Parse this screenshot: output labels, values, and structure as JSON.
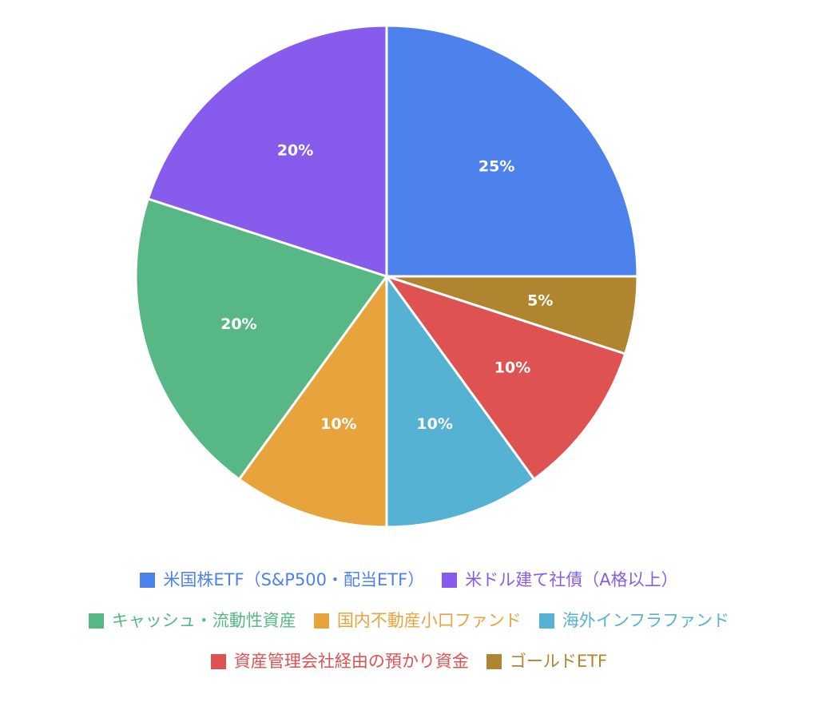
{
  "chart_data": {
    "type": "pie",
    "categories": [
      "米国株ETF（S&P500・配当ETF）",
      "ゴールドETF",
      "資産管理会社経由の預かり資金",
      "海外インフラファンド",
      "国内不動産小口ファンド",
      "キャッシュ・流動性資産",
      "米ドル建て社債（A格以上）"
    ],
    "values": [
      25,
      5,
      10,
      10,
      10,
      20,
      20
    ],
    "value_labels": [
      "25%",
      "5%",
      "10%",
      "10%",
      "10%",
      "20%",
      "20%"
    ],
    "colors": [
      "#4d82ec",
      "#b08530",
      "#de5251",
      "#55b2d3",
      "#e8a43c",
      "#57b885",
      "#875cec"
    ],
    "start_angle_deg": 0,
    "direction": "clockwise",
    "legend_position": "bottom",
    "title": ""
  },
  "legend": {
    "rows": [
      [
        {
          "label": "米国株ETF（S&P500・配当ETF）",
          "color": "#4d82ec"
        },
        {
          "label": "米ドル建て社債（A格以上）",
          "color": "#875cec"
        }
      ],
      [
        {
          "label": "キャッシュ・流動性資産",
          "color": "#57b885"
        },
        {
          "label": "国内不動産小口ファンド",
          "color": "#e8a43c"
        },
        {
          "label": "海外インフラファンド",
          "color": "#55b2d3"
        }
      ],
      [
        {
          "label": "資産管理会社経由の預かり資金",
          "color": "#de5251"
        },
        {
          "label": "ゴールドETF",
          "color": "#b08530"
        }
      ]
    ]
  }
}
